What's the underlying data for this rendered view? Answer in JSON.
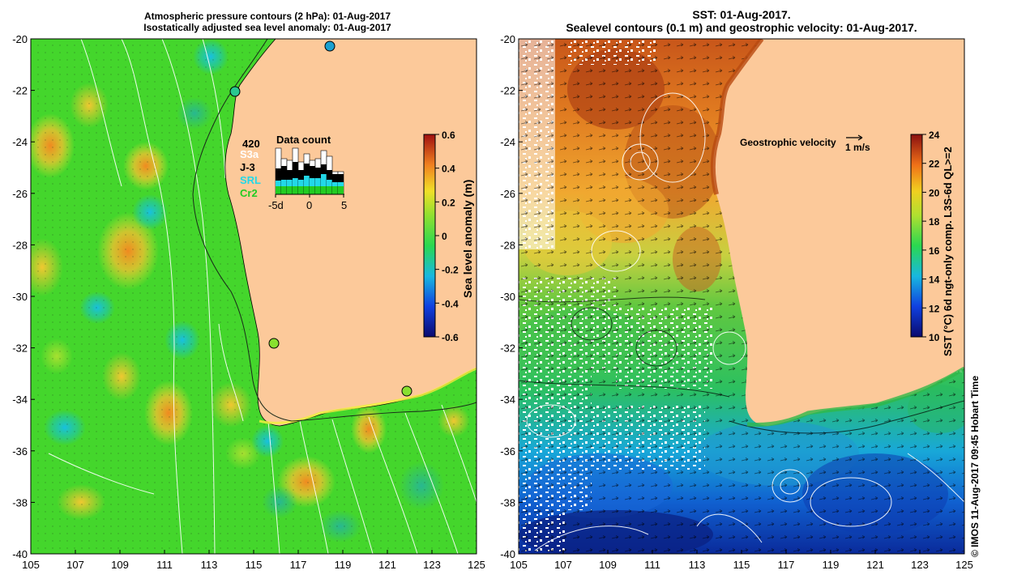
{
  "left_panel": {
    "title_line1": "Atmospheric pressure contours (2 hPa): 01-Aug-2017",
    "title_line2": "Isostatically adjusted sea level anomaly: 01-Aug-2017",
    "lon_ticks": [
      "105",
      "107",
      "109",
      "111",
      "113",
      "115",
      "117",
      "119",
      "121",
      "123",
      "125"
    ],
    "lat_ticks": [
      "-20",
      "-22",
      "-24",
      "-26",
      "-28",
      "-30",
      "-32",
      "-34",
      "-36",
      "-38",
      "-40"
    ],
    "colorbar": {
      "label": "Sea level anomaly (m)",
      "ticks": [
        "0.6",
        "0.4",
        "0.2",
        "0",
        "-0.2",
        "-0.4",
        "-0.6"
      ]
    },
    "data_count": {
      "title": "Data count",
      "total": "420",
      "missions": [
        "S3a",
        "J-3",
        "SRL",
        "Cr2"
      ],
      "mission_colors": [
        "#ffffff",
        "#000000",
        "#22d8e8",
        "#22cc22"
      ],
      "axis_labels": [
        "-5d",
        "0",
        "5"
      ]
    }
  },
  "right_panel": {
    "title_line1": "SST: 01-Aug-2017.",
    "title_line2": "Sealevel contours (0.1 m) and geostrophic velocity: 01-Aug-2017.",
    "lon_ticks": [
      "105",
      "107",
      "109",
      "111",
      "113",
      "115",
      "117",
      "119",
      "121",
      "123",
      "125"
    ],
    "lat_ticks": [
      "-20",
      "-22",
      "-24",
      "-26",
      "-28",
      "-30",
      "-32",
      "-34",
      "-36",
      "-38",
      "-40"
    ],
    "velocity_legend": "Geostrophic velocity",
    "velocity_scale": "1 m/s",
    "colorbar": {
      "label": "SST (°C) 6d ngt-only comp. L3S-6d QL>=2",
      "ticks": [
        "24",
        "22",
        "20",
        "18",
        "16",
        "14",
        "12",
        "10"
      ]
    }
  },
  "footer": "© IMOS 11-Aug-2017 09:45 Hobart Time",
  "colors": {
    "land": "#fcc99a",
    "sla_base": "#44d62c",
    "sst_base": "#3cb83c"
  }
}
